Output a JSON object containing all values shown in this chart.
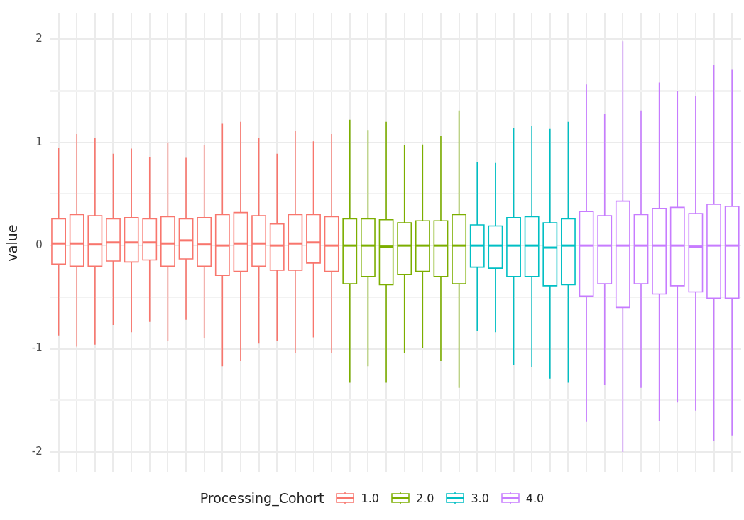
{
  "chart_data": {
    "type": "box",
    "ylabel": "value",
    "legend_title": "Processing_Cohort",
    "legend": "bottom",
    "grid": true,
    "tick_labels": "y",
    "ylim": [
      -2.2,
      2.25
    ],
    "yticks": [
      -2,
      {
        "value": -1.5,
        "label": null
      },
      -1,
      {
        "value": -0.5,
        "label": null
      },
      0,
      {
        "value": 0.5,
        "label": null
      },
      1,
      {
        "value": 1.5,
        "label": null
      },
      2
    ],
    "categories": [
      null,
      null,
      null,
      null,
      null,
      null,
      null,
      null,
      null,
      null,
      null,
      null,
      null,
      null,
      null,
      null,
      null,
      null,
      null,
      null,
      null,
      null,
      null,
      null,
      null,
      null,
      null,
      null,
      null,
      null,
      null,
      null,
      null,
      null,
      null,
      null,
      null,
      null
    ],
    "series": [
      {
        "name": "1.0",
        "color": "#f8766d",
        "boxes": [
          {
            "low": -0.87,
            "q1": -0.18,
            "median": 0.02,
            "q3": 0.26,
            "high": 0.95
          },
          {
            "low": -0.98,
            "q1": -0.2,
            "median": 0.02,
            "q3": 0.3,
            "high": 1.08
          },
          {
            "low": -0.96,
            "q1": -0.2,
            "median": 0.01,
            "q3": 0.29,
            "high": 1.04
          },
          {
            "low": -0.77,
            "q1": -0.15,
            "median": 0.03,
            "q3": 0.26,
            "high": 0.89
          },
          {
            "low": -0.84,
            "q1": -0.16,
            "median": 0.03,
            "q3": 0.27,
            "high": 0.94
          },
          {
            "low": -0.74,
            "q1": -0.14,
            "median": 0.03,
            "q3": 0.26,
            "high": 0.86
          },
          {
            "low": -0.92,
            "q1": -0.2,
            "median": 0.02,
            "q3": 0.28,
            "high": 1.0
          },
          {
            "low": -0.72,
            "q1": -0.13,
            "median": 0.05,
            "q3": 0.26,
            "high": 0.85
          },
          {
            "low": -0.9,
            "q1": -0.2,
            "median": 0.01,
            "q3": 0.27,
            "high": 0.97
          },
          {
            "low": -1.17,
            "q1": -0.29,
            "median": 0.0,
            "q3": 0.3,
            "high": 1.18
          },
          {
            "low": -1.12,
            "q1": -0.25,
            "median": 0.02,
            "q3": 0.32,
            "high": 1.2
          },
          {
            "low": -0.95,
            "q1": -0.2,
            "median": 0.02,
            "q3": 0.29,
            "high": 1.04
          },
          {
            "low": -0.92,
            "q1": -0.24,
            "median": 0.0,
            "q3": 0.21,
            "high": 0.89
          },
          {
            "low": -1.04,
            "q1": -0.24,
            "median": 0.02,
            "q3": 0.3,
            "high": 1.11
          },
          {
            "low": -0.89,
            "q1": -0.17,
            "median": 0.03,
            "q3": 0.3,
            "high": 1.01
          },
          {
            "low": -1.04,
            "q1": -0.25,
            "median": 0.0,
            "q3": 0.28,
            "high": 1.08
          },
          null,
          null,
          null,
          null,
          null,
          null,
          null,
          null,
          null,
          null,
          null,
          null,
          null,
          null,
          null,
          null,
          null,
          null,
          null,
          null,
          null,
          null
        ]
      },
      {
        "name": "2.0",
        "color": "#7cae00",
        "boxes": [
          null,
          null,
          null,
          null,
          null,
          null,
          null,
          null,
          null,
          null,
          null,
          null,
          null,
          null,
          null,
          null,
          {
            "low": -1.33,
            "q1": -0.37,
            "median": 0.0,
            "q3": 0.26,
            "high": 1.22
          },
          {
            "low": -1.17,
            "q1": -0.3,
            "median": 0.0,
            "q3": 0.26,
            "high": 1.12
          },
          {
            "low": -1.33,
            "q1": -0.38,
            "median": -0.01,
            "q3": 0.25,
            "high": 1.2
          },
          {
            "low": -1.04,
            "q1": -0.28,
            "median": 0.0,
            "q3": 0.22,
            "high": 0.97
          },
          {
            "low": -0.99,
            "q1": -0.25,
            "median": 0.0,
            "q3": 0.24,
            "high": 0.98
          },
          {
            "low": -1.12,
            "q1": -0.3,
            "median": 0.0,
            "q3": 0.24,
            "high": 1.06
          },
          {
            "low": -1.38,
            "q1": -0.37,
            "median": 0.0,
            "q3": 0.3,
            "high": 1.31
          },
          null,
          null,
          null,
          null,
          null,
          null,
          null,
          null,
          null,
          null,
          null,
          null,
          null,
          null,
          null
        ]
      },
      {
        "name": "3.0",
        "color": "#00bfc4",
        "boxes": [
          null,
          null,
          null,
          null,
          null,
          null,
          null,
          null,
          null,
          null,
          null,
          null,
          null,
          null,
          null,
          null,
          null,
          null,
          null,
          null,
          null,
          null,
          null,
          {
            "low": -0.83,
            "q1": -0.21,
            "median": 0.0,
            "q3": 0.2,
            "high": 0.81
          },
          {
            "low": -0.84,
            "q1": -0.22,
            "median": 0.0,
            "q3": 0.19,
            "high": 0.8
          },
          {
            "low": -1.16,
            "q1": -0.3,
            "median": 0.0,
            "q3": 0.27,
            "high": 1.14
          },
          {
            "low": -1.18,
            "q1": -0.3,
            "median": 0.0,
            "q3": 0.28,
            "high": 1.16
          },
          {
            "low": -1.29,
            "q1": -0.39,
            "median": -0.02,
            "q3": 0.22,
            "high": 1.13
          },
          {
            "low": -1.33,
            "q1": -0.38,
            "median": 0.0,
            "q3": 0.26,
            "high": 1.2
          },
          null,
          null,
          null,
          null,
          null,
          null,
          null,
          null,
          null
        ]
      },
      {
        "name": "4.0",
        "color": "#c77cff",
        "boxes": [
          null,
          null,
          null,
          null,
          null,
          null,
          null,
          null,
          null,
          null,
          null,
          null,
          null,
          null,
          null,
          null,
          null,
          null,
          null,
          null,
          null,
          null,
          null,
          null,
          null,
          null,
          null,
          null,
          null,
          {
            "low": -1.71,
            "q1": -0.49,
            "median": 0.0,
            "q3": 0.33,
            "high": 1.56
          },
          {
            "low": -1.35,
            "q1": -0.37,
            "median": 0.0,
            "q3": 0.29,
            "high": 1.28
          },
          {
            "low": -2.0,
            "q1": -0.6,
            "median": 0.0,
            "q3": 0.43,
            "high": 1.98
          },
          {
            "low": -1.38,
            "q1": -0.37,
            "median": 0.0,
            "q3": 0.3,
            "high": 1.31
          },
          {
            "low": -1.7,
            "q1": -0.47,
            "median": 0.0,
            "q3": 0.36,
            "high": 1.58
          },
          {
            "low": -1.52,
            "q1": -0.39,
            "median": 0.0,
            "q3": 0.37,
            "high": 1.5
          },
          {
            "low": -1.6,
            "q1": -0.45,
            "median": -0.01,
            "q3": 0.31,
            "high": 1.45
          },
          {
            "low": -1.89,
            "q1": -0.51,
            "median": 0.0,
            "q3": 0.4,
            "high": 1.75
          },
          {
            "low": -1.84,
            "q1": -0.51,
            "median": 0.0,
            "q3": 0.38,
            "high": 1.71
          }
        ]
      }
    ]
  }
}
